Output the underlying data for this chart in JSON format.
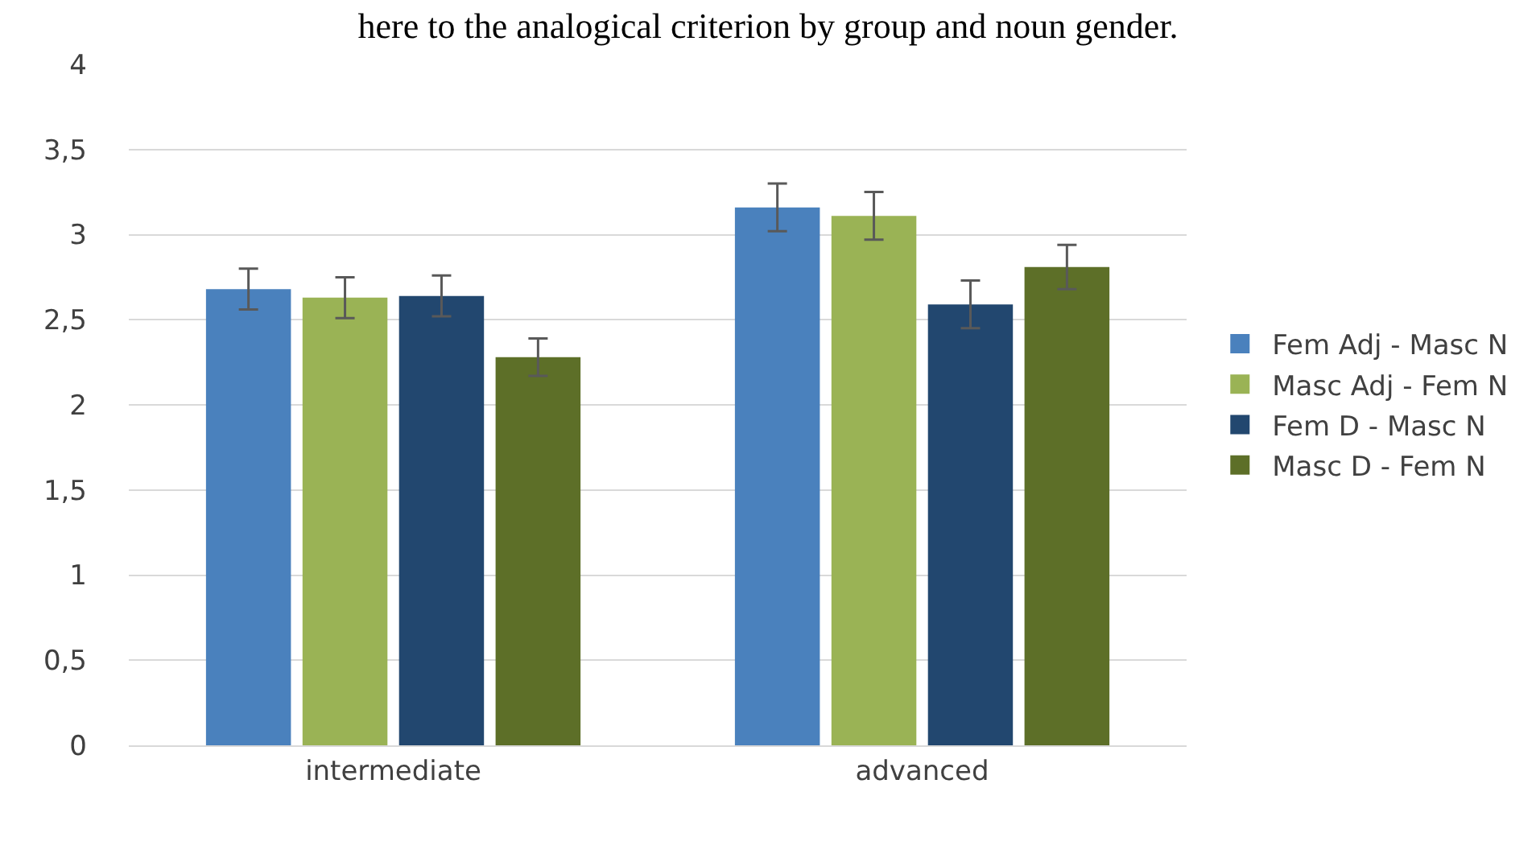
{
  "chart_data": {
    "type": "bar",
    "title": "here to the analogical criterion by group and noun gender.",
    "categories": [
      "intermediate",
      "advanced"
    ],
    "series": [
      {
        "name": "Fem Adj - Masc N",
        "color": "#4a81bd",
        "values": [
          2.68,
          3.16
        ],
        "errors": [
          0.12,
          0.14
        ]
      },
      {
        "name": "Masc Adj - Fem N",
        "color": "#9ab355",
        "values": [
          2.63,
          3.11
        ],
        "errors": [
          0.12,
          0.14
        ]
      },
      {
        "name": "Fem D - Masc N",
        "color": "#22476f",
        "values": [
          2.64,
          2.59
        ],
        "errors": [
          0.12,
          0.14
        ]
      },
      {
        "name": "Masc D - Fem N",
        "color": "#5d6f28",
        "values": [
          2.28,
          2.81
        ],
        "errors": [
          0.11,
          0.13
        ]
      }
    ],
    "ylim": [
      0,
      4
    ],
    "yticks": [
      0,
      {
        "value": 0.5,
        "label": "0,5"
      },
      1,
      {
        "value": 1.5,
        "label": "1,5"
      },
      2,
      {
        "value": 2.5,
        "label": "2,5"
      },
      3,
      {
        "value": 3.5,
        "label": "3,5"
      },
      4
    ],
    "grid": "y",
    "legend": "right"
  }
}
